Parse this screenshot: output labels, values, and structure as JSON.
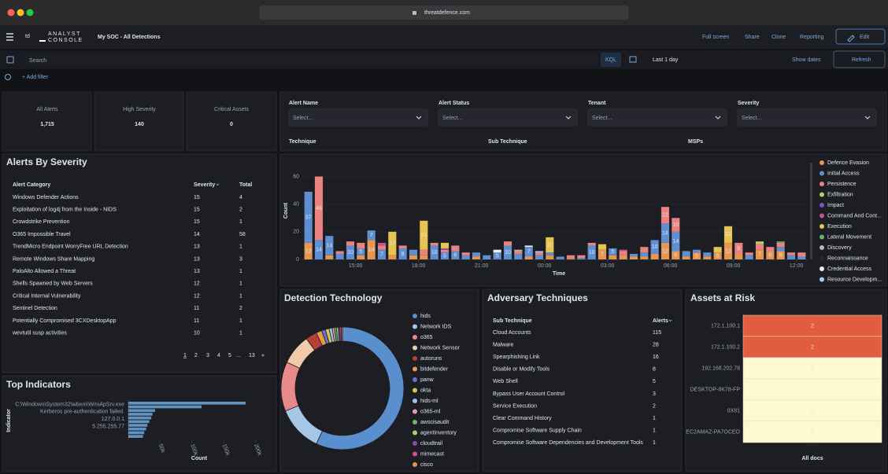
{
  "browser": {
    "url": "threatdefence.com"
  },
  "header": {
    "logo_mark": "td",
    "logo_lines": [
      "ANALYST",
      "CONSOLE"
    ],
    "title": "My SOC - All Detections",
    "actions": [
      "Full screen",
      "Share",
      "Clone",
      "Reporting"
    ],
    "edit": "Edit"
  },
  "query": {
    "placeholder": "Search",
    "language": "KQL",
    "time_range": "Last 1 day",
    "show_dates": "Show dates",
    "refresh": "Refresh",
    "add_filter": "+ Add filter"
  },
  "metrics": [
    {
      "label": "All Alerts",
      "value": "1,715",
      "color": "#6092c0"
    },
    {
      "label": "High Severity",
      "value": "140",
      "color": "#e7664c"
    },
    {
      "label": "Critical Assets",
      "value": "0",
      "color": "#dfe5ef"
    }
  ],
  "controls": {
    "fields": [
      {
        "label": "Alert Name",
        "placeholder": "Select..."
      },
      {
        "label": "Alert Status",
        "placeholder": "Select..."
      },
      {
        "label": "Tenant",
        "placeholder": "Select..."
      },
      {
        "label": "Severity",
        "placeholder": "Select..."
      }
    ],
    "more_fields": [
      "Technique",
      "Sub Technique",
      "MSPs"
    ]
  },
  "alerts_by_severity": {
    "title": "Alerts By Severity",
    "columns": [
      "Alert Category",
      "Severity",
      "Total"
    ],
    "rows": [
      [
        "Windows Defender Actions",
        15,
        4
      ],
      [
        "Exploitation of log4j from the Inside - NIDS",
        15,
        2
      ],
      [
        "Crowdstrike Prevention",
        15,
        1
      ],
      [
        "O365 Impossible Travel",
        14,
        58
      ],
      [
        "TrendMicro Endpoint WorryFree URL Detection",
        13,
        1
      ],
      [
        "Remote Windows Share Mapping",
        13,
        3
      ],
      [
        "PaloAlto Allowed a Threat",
        13,
        1
      ],
      [
        "Shells Spawned by Web Servers",
        12,
        1
      ],
      [
        "Critical Internal Vulnerability",
        12,
        1
      ],
      [
        "Sentinel Detection",
        11,
        2
      ],
      [
        "Potentially Compromised 3CXDesktopApp",
        11,
        1
      ],
      [
        "wevtutil susp activities",
        10,
        1
      ]
    ],
    "pagination": [
      "1",
      "2",
      "3",
      "4",
      "5",
      "...",
      "13",
      "»"
    ]
  },
  "adversary_techniques": {
    "title": "Adversary Techniques",
    "columns": [
      "Sub Technique",
      "Alerts"
    ],
    "rows": [
      [
        "Cloud Accounts",
        115
      ],
      [
        "Malware",
        28
      ],
      [
        "Spearphishing Link",
        16
      ],
      [
        "Disable or Modify Tools",
        8
      ],
      [
        "Web Shell",
        5
      ],
      [
        "Bypass User Account Control",
        3
      ],
      [
        "Service Execution",
        2
      ],
      [
        "Clear Command History",
        1
      ],
      [
        "Compromise Software Supply Chain",
        1
      ],
      [
        "Compromise Software Dependencies and Development Tools",
        1
      ]
    ]
  },
  "chart_data": [
    {
      "type": "stacked-bar",
      "xlabel": "Time",
      "ylabel": "Count",
      "ylim": [
        0,
        70
      ],
      "yticks": [
        0,
        20,
        40,
        60
      ],
      "grid": true,
      "legend": "right",
      "categories": [
        null,
        null,
        null,
        null,
        null,
        "15:00",
        null,
        null,
        null,
        null,
        null,
        "18:00",
        null,
        null,
        null,
        null,
        null,
        "21:00",
        null,
        null,
        null,
        null,
        null,
        "00:00",
        null,
        null,
        null,
        null,
        null,
        "03:00",
        null,
        null,
        null,
        null,
        null,
        "06:00",
        null,
        null,
        null,
        null,
        null,
        "09:00",
        null,
        null,
        null,
        null,
        null,
        "12:00"
      ],
      "series": [
        {
          "name": "Defence Evasion",
          "color": "#e7964f",
          "values": [
            12,
            0,
            3,
            0,
            0,
            3,
            14,
            0,
            3,
            0,
            3,
            3,
            0,
            0,
            0,
            0,
            2,
            0,
            0,
            0,
            0,
            2,
            0,
            3,
            0,
            1,
            0,
            0,
            7,
            3,
            3,
            2,
            2,
            4,
            12,
            6,
            2,
            5,
            2,
            5,
            12,
            4,
            0,
            7,
            6,
            6,
            0,
            0
          ]
        },
        {
          "name": "Initial Access",
          "color": "#5f8fd0",
          "values": [
            37,
            14,
            14,
            4,
            10,
            5,
            7,
            7,
            0,
            8,
            4,
            0,
            10,
            5,
            6,
            3,
            3,
            3,
            5,
            10,
            4,
            7,
            3,
            2,
            2,
            0,
            1,
            10,
            0,
            5,
            0,
            2,
            3,
            10,
            14,
            14,
            4,
            2,
            3,
            0,
            0,
            0,
            3,
            0,
            0,
            3,
            3,
            2
          ]
        },
        {
          "name": "Persistence",
          "color": "#e8837f",
          "values": [
            0,
            46,
            0,
            2,
            3,
            4,
            0,
            3,
            0,
            2,
            0,
            4,
            2,
            2,
            4,
            2,
            0,
            0,
            0,
            3,
            2,
            0,
            2,
            0,
            0,
            2,
            2,
            2,
            0,
            0,
            3,
            0,
            4,
            0,
            12,
            10,
            0,
            0,
            0,
            0,
            0,
            8,
            2,
            4,
            3,
            3,
            2,
            3
          ]
        },
        {
          "name": "Exfiltration",
          "color": "#b4cf6b",
          "values": [
            0,
            0,
            0,
            0,
            0,
            0,
            0,
            0,
            0,
            0,
            0,
            0,
            0,
            0,
            0,
            0,
            0,
            0,
            0,
            0,
            0,
            0,
            0,
            0,
            0,
            0,
            0,
            0,
            0,
            0,
            0,
            0,
            0,
            0,
            0,
            0,
            0,
            0,
            0,
            0,
            0,
            0,
            0,
            2,
            0,
            0,
            0,
            0
          ]
        },
        {
          "name": "Impact",
          "color": "#7c54c8",
          "values": [
            0,
            0,
            0,
            0,
            0,
            0,
            0,
            0,
            0,
            0,
            0,
            0,
            0,
            1,
            0,
            0,
            0,
            0,
            0,
            0,
            0,
            0,
            0,
            0,
            0,
            0,
            0,
            0,
            0,
            0,
            0,
            0,
            0,
            0,
            0,
            0,
            0,
            0,
            0,
            0,
            0,
            0,
            0,
            0,
            0,
            0,
            0,
            0
          ]
        },
        {
          "name": "Command And Cont...",
          "color": "#c8528a",
          "values": [
            0,
            0,
            0,
            0,
            0,
            0,
            0,
            2,
            0,
            0,
            0,
            0,
            0,
            0,
            0,
            0,
            0,
            0,
            0,
            0,
            0,
            0,
            0,
            0,
            0,
            0,
            0,
            0,
            0,
            0,
            1,
            0,
            0,
            0,
            0,
            0,
            0,
            0,
            0,
            0,
            0,
            0,
            0,
            0,
            0,
            0,
            0,
            0
          ]
        },
        {
          "name": "Execution",
          "color": "#e5c452",
          "values": [
            0,
            0,
            0,
            0,
            0,
            0,
            0,
            0,
            17,
            0,
            0,
            21,
            0,
            4,
            0,
            0,
            0,
            0,
            0,
            0,
            0,
            0,
            0,
            11,
            0,
            0,
            0,
            0,
            4,
            0,
            0,
            0,
            0,
            0,
            0,
            0,
            0,
            0,
            0,
            4,
            12,
            0,
            0,
            0,
            0,
            0,
            0,
            0
          ]
        },
        {
          "name": "Lateral Movement",
          "color": "#62b66a",
          "values": [
            0,
            0,
            0,
            0,
            0,
            0,
            0,
            0,
            0,
            0,
            0,
            0,
            0,
            0,
            0,
            0,
            0,
            0,
            0,
            0,
            0,
            0,
            0,
            0,
            0,
            0,
            0,
            0,
            0,
            0,
            0,
            0,
            0,
            0,
            0,
            0,
            0,
            0,
            0,
            0,
            0,
            0,
            0,
            0,
            0,
            1,
            0,
            0
          ]
        },
        {
          "name": "Discovery",
          "color": "#b8b8b8",
          "values": [
            0,
            0,
            0,
            0,
            0,
            0,
            0,
            0,
            0,
            0,
            0,
            0,
            0,
            0,
            0,
            0,
            0,
            0,
            0,
            0,
            1,
            0,
            0,
            0,
            0,
            0,
            0,
            0,
            0,
            0,
            0,
            0,
            0,
            0,
            0,
            0,
            0,
            0,
            0,
            0,
            0,
            0,
            0,
            0,
            0,
            0,
            0,
            0
          ]
        },
        {
          "name": "Reconnaissance",
          "color": "#25262e",
          "values": [
            0,
            0,
            0,
            0,
            0,
            0,
            0,
            0,
            0,
            0,
            0,
            0,
            0,
            0,
            0,
            0,
            0,
            0,
            0,
            0,
            0,
            0,
            0,
            0,
            0,
            0,
            0,
            0,
            0,
            0,
            0,
            0,
            0,
            0,
            0,
            0,
            0,
            0,
            0,
            0,
            0,
            0,
            0,
            0,
            0,
            0,
            0,
            0
          ]
        },
        {
          "name": "Credential Access",
          "color": "#f0f0f0",
          "values": [
            0,
            0,
            0,
            0,
            0,
            0,
            0,
            0,
            0,
            0,
            0,
            0,
            0,
            0,
            0,
            0,
            0,
            0,
            2,
            0,
            0,
            1,
            0,
            0,
            0,
            0,
            0,
            0,
            0,
            0,
            0,
            0,
            0,
            0,
            0,
            0,
            0,
            0,
            0,
            0,
            0,
            0,
            0,
            0,
            0,
            0,
            0,
            0
          ]
        },
        {
          "name": "Resource Developm...",
          "color": "#a9cbee",
          "values": [
            0,
            0,
            0,
            0,
            0,
            0,
            0,
            0,
            0,
            0,
            0,
            0,
            0,
            0,
            0,
            0,
            0,
            0,
            0,
            0,
            0,
            0,
            1,
            0,
            0,
            0,
            0,
            0,
            0,
            0,
            0,
            0,
            0,
            0,
            0,
            0,
            0,
            0,
            0,
            0,
            0,
            0,
            0,
            0,
            0,
            0,
            0,
            0
          ]
        }
      ]
    },
    {
      "type": "hbar",
      "title": "Top Indicators",
      "xlabel": "Count",
      "ylabel": "Indicator",
      "color": "#6092c0",
      "xlim": [
        0,
        220000
      ],
      "xticks": [
        {
          "value": 50000,
          "label": "50k"
        },
        {
          "value": 100000,
          "label": "100k"
        },
        {
          "value": 150000,
          "label": "150k"
        },
        {
          "value": 200000,
          "label": "200k"
        }
      ],
      "categories": [
        "C:\\Windows\\System32\\wbem\\WmiApSrv.exe",
        null,
        "Kerberos pre-authentication failed.",
        null,
        "127.0.0.1",
        null,
        "5.255.255.77",
        null,
        null,
        null
      ],
      "values": [
        184000,
        115000,
        42000,
        38000,
        36000,
        33000,
        30000,
        28000,
        25000,
        23000
      ]
    },
    {
      "type": "donut",
      "title": "Detection Technology",
      "categories": [
        "hids",
        "Network IDS",
        "o365",
        "Network Sensor",
        "autoruns",
        "bitdefender",
        "panw",
        "okta",
        "hids-ml",
        "o365-ml",
        "awscisaudit",
        "agentinventory",
        "cloudtrail",
        "mimecast",
        "cisco"
      ],
      "values": [
        57,
        12,
        13,
        8,
        3,
        1.5,
        1,
        1,
        0.8,
        0.6,
        0.5,
        0.5,
        0.4,
        0.4,
        0.3
      ],
      "colors": [
        "#5a8fce",
        "#a6c6e5",
        "#e88a8a",
        "#f1cba8",
        "#b5403a",
        "#e89a4b",
        "#6b6fd0",
        "#d9c34a",
        "#9ec3e8",
        "#e49ab0",
        "#6cb86c",
        "#a6d06f",
        "#8e44ad",
        "#d0508f",
        "#e09355"
      ]
    },
    {
      "type": "heatmap",
      "title": "Assets at Risk",
      "xlabel": "All docs",
      "categories": [
        "172.1.100.1",
        "172.1.100.2",
        "192.168.202.78",
        "DESKTOP-8K78-FP",
        "0X81",
        "EC2AMAZ-PA7OCEO"
      ],
      "values": [
        2,
        2,
        1,
        1,
        1,
        1
      ],
      "colors": [
        "#fdf8cf",
        "#e25c3f"
      ]
    }
  ]
}
